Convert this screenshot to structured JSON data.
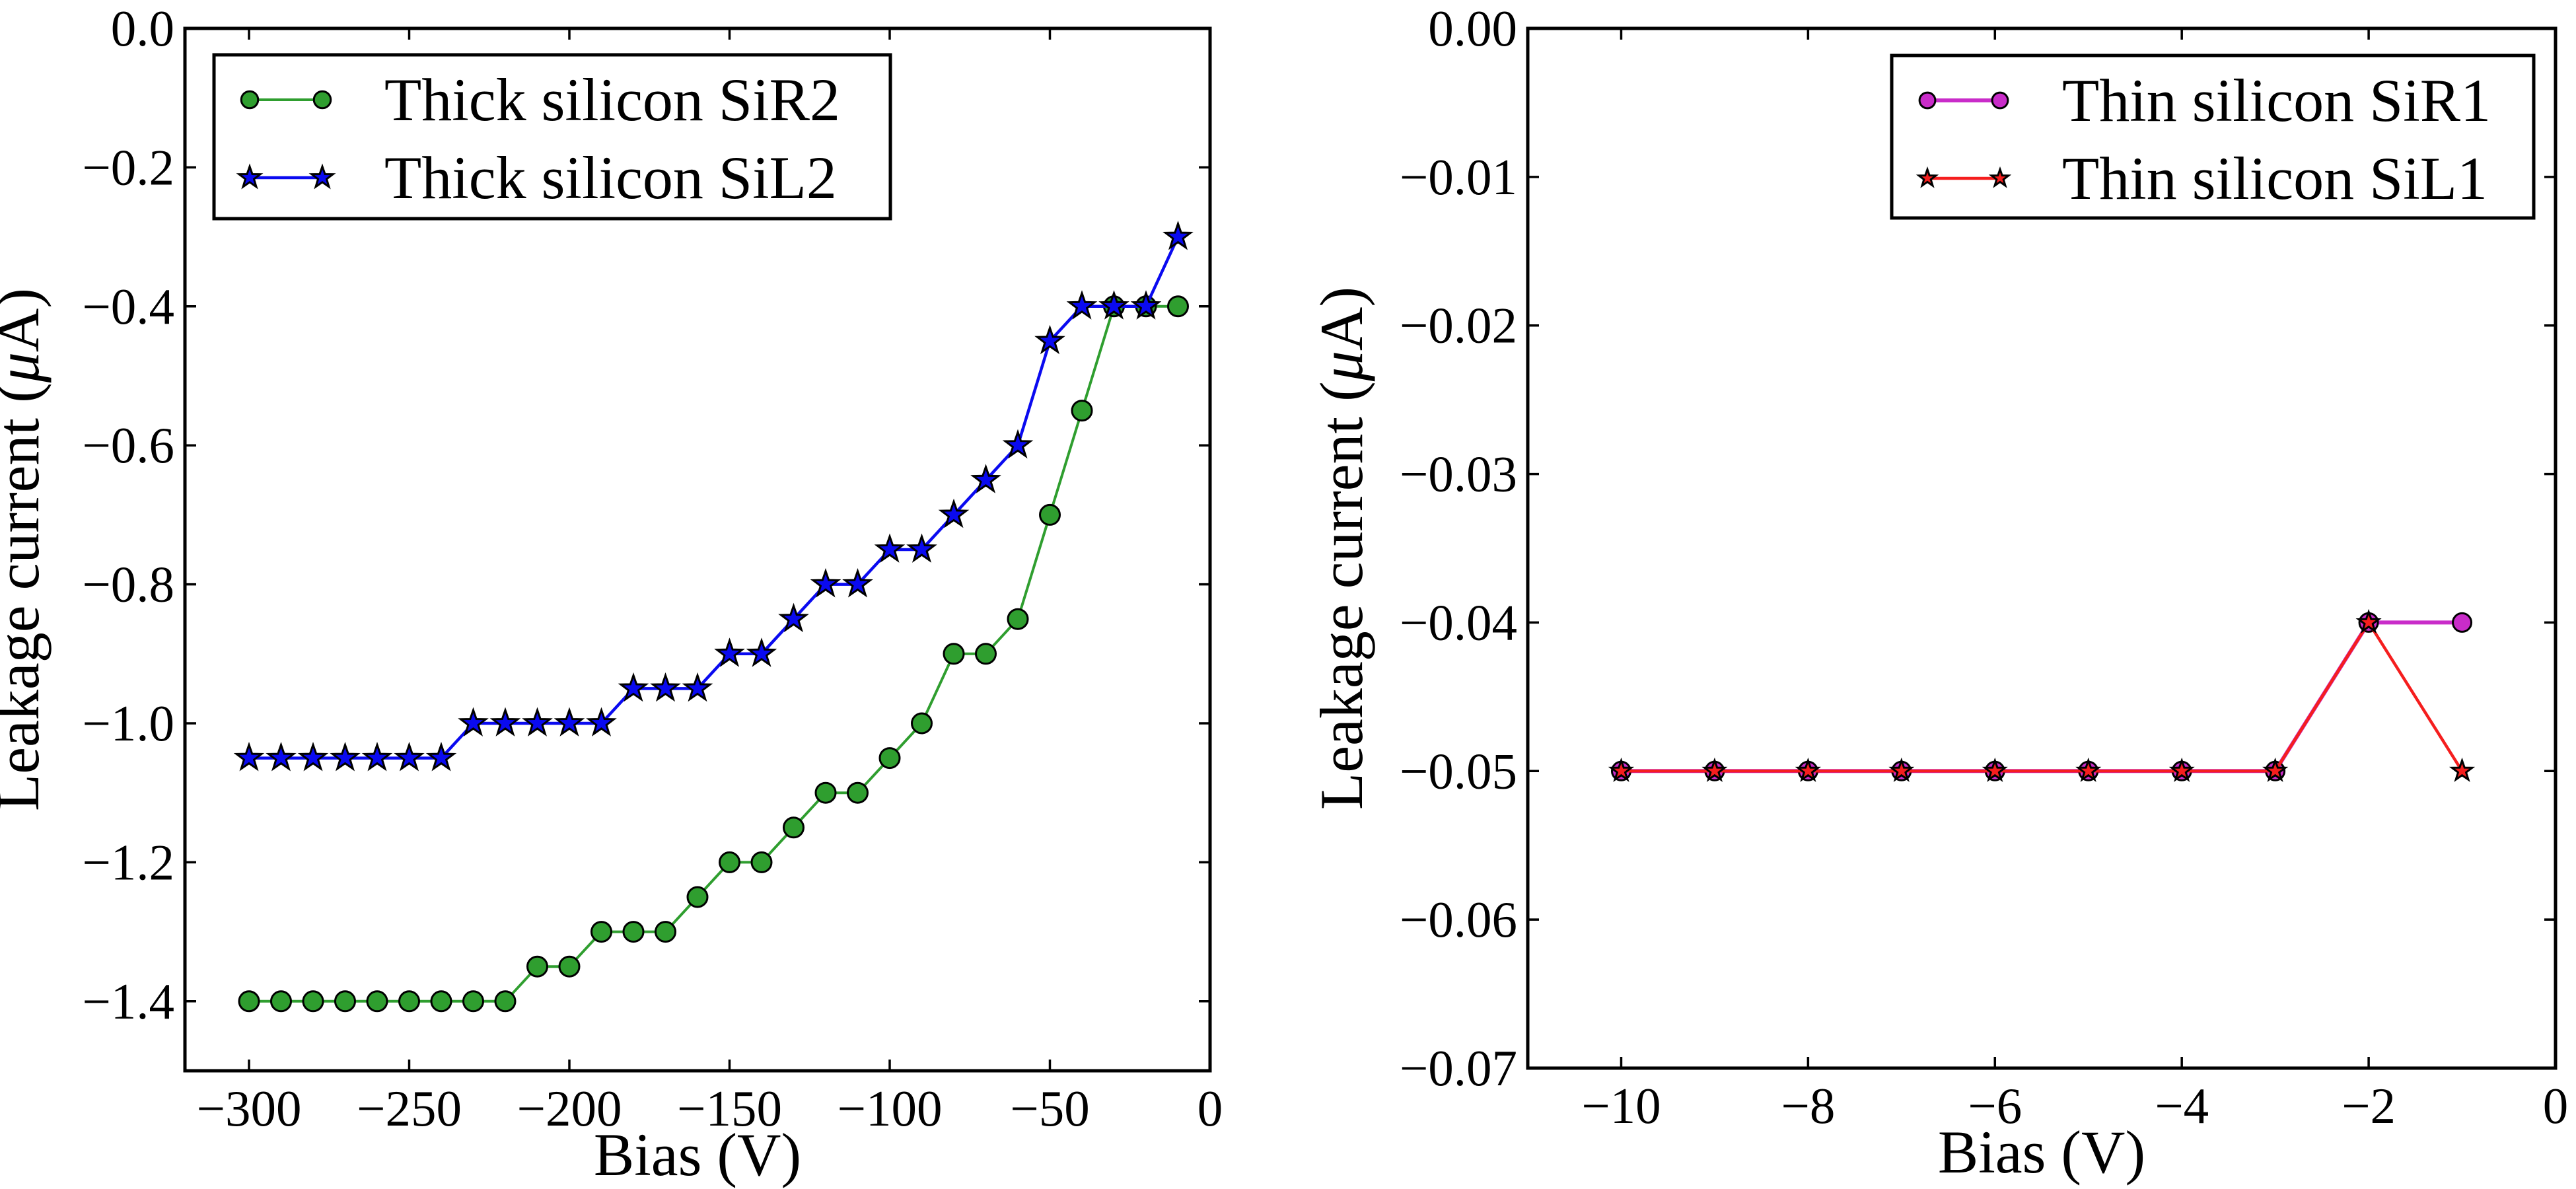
{
  "figure": {
    "background": "#ffffff"
  },
  "chart_data": [
    {
      "type": "line",
      "title": "",
      "xlabel": "Bias (V)",
      "ylabel": "Leakage current (μA)",
      "xlim": [
        -320,
        0
      ],
      "ylim": [
        -1.5,
        0
      ],
      "grid": false,
      "legend_position": "upper-left",
      "xticks": {
        "values": [
          -300,
          -250,
          -200,
          -150,
          -100,
          -50,
          0
        ],
        "labels": [
          "−300",
          "−250",
          "−200",
          "−150",
          "−100",
          "−50",
          "0"
        ]
      },
      "yticks": {
        "values": [
          0.0,
          -0.2,
          -0.4,
          -0.6,
          -0.8,
          -1.0,
          -1.2,
          -1.4
        ],
        "labels": [
          "0.0",
          "−0.2",
          "−0.4",
          "−0.6",
          "−0.8",
          "−1.0",
          "−1.2",
          "−1.4"
        ]
      },
      "x": [
        -300,
        -290,
        -280,
        -270,
        -260,
        -250,
        -240,
        -230,
        -220,
        -210,
        -200,
        -190,
        -180,
        -170,
        -160,
        -150,
        -140,
        -130,
        -120,
        -110,
        -100,
        -90,
        -80,
        -70,
        -60,
        -50,
        -40,
        -30,
        -20,
        -10
      ],
      "series": [
        {
          "name": "Thick silicon SiR2",
          "color": "#2f9e2f",
          "marker": "circle",
          "marker_size": 15,
          "line_width": 4,
          "values": [
            -1.4,
            -1.4,
            -1.4,
            -1.4,
            -1.4,
            -1.4,
            -1.4,
            -1.4,
            -1.4,
            -1.35,
            -1.35,
            -1.3,
            -1.3,
            -1.3,
            -1.25,
            -1.2,
            -1.2,
            -1.15,
            -1.1,
            -1.1,
            -1.05,
            -1.0,
            -0.9,
            -0.9,
            -0.85,
            -0.7,
            -0.55,
            -0.4,
            -0.4,
            -0.4
          ]
        },
        {
          "name": "Thick silicon SiL2",
          "color": "#0a0af0",
          "marker": "star",
          "marker_size": 20,
          "line_width": 4.5,
          "values": [
            -1.05,
            -1.05,
            -1.05,
            -1.05,
            -1.05,
            -1.05,
            -1.05,
            -1.0,
            -1.0,
            -1.0,
            -1.0,
            -1.0,
            -0.95,
            -0.95,
            -0.95,
            -0.9,
            -0.9,
            -0.85,
            -0.8,
            -0.8,
            -0.75,
            -0.75,
            -0.7,
            -0.65,
            -0.6,
            -0.45,
            -0.4,
            -0.4,
            -0.4,
            -0.3
          ]
        }
      ]
    },
    {
      "type": "line",
      "title": "",
      "xlabel": "Bias (V)",
      "ylabel": "Leakage current (μA)",
      "xlim": [
        -11,
        0
      ],
      "ylim": [
        -0.07,
        0
      ],
      "grid": false,
      "legend_position": "upper-right",
      "xticks": {
        "values": [
          -10,
          -8,
          -6,
          -4,
          -2,
          0
        ],
        "labels": [
          "−10",
          "−8",
          "−6",
          "−4",
          "−2",
          "0"
        ]
      },
      "yticks": {
        "values": [
          0.0,
          -0.01,
          -0.02,
          -0.03,
          -0.04,
          -0.05,
          -0.06,
          -0.07
        ],
        "labels": [
          "0.00",
          "−0.01",
          "−0.02",
          "−0.03",
          "−0.04",
          "−0.05",
          "−0.06",
          "−0.07"
        ]
      },
      "x": [
        -10,
        -9,
        -8,
        -7,
        -6,
        -5,
        -4,
        -3,
        -2,
        -1
      ],
      "series": [
        {
          "name": "Thin silicon SiR1",
          "color": "#c92cc9",
          "marker": "circle",
          "marker_size": 14,
          "line_width": 6,
          "values": [
            -0.05,
            -0.05,
            -0.05,
            -0.05,
            -0.05,
            -0.05,
            -0.05,
            -0.05,
            -0.04,
            -0.04
          ]
        },
        {
          "name": "Thin silicon SiL1",
          "color": "#f51e1e",
          "marker": "star",
          "marker_size": 16,
          "line_width": 4.5,
          "values": [
            -0.05,
            -0.05,
            -0.05,
            -0.05,
            -0.05,
            -0.05,
            -0.05,
            -0.05,
            -0.04,
            -0.05
          ]
        }
      ]
    }
  ]
}
